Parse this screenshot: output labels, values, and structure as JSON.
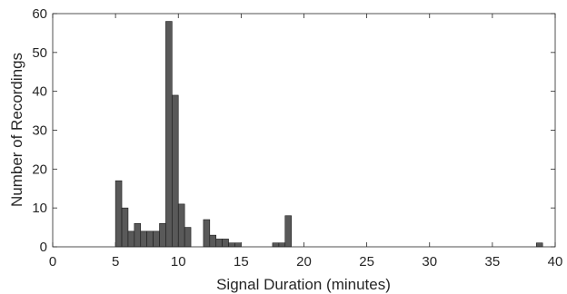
{
  "chart_data": {
    "type": "bar",
    "title": "",
    "xlabel": "Signal Duration (minutes)",
    "ylabel": "Number of Recordings",
    "xlim": [
      0,
      40
    ],
    "ylim": [
      0,
      60
    ],
    "xticks": [
      "0",
      "5",
      "10",
      "15",
      "20",
      "25",
      "30",
      "35",
      "40"
    ],
    "yticks": [
      "0",
      "10",
      "20",
      "30",
      "40",
      "50",
      "60"
    ],
    "bin_width": 0.5,
    "bar_color": "#595959",
    "bar_edge_color": "#1a1a1a",
    "grid": false,
    "bins": [
      {
        "start": 5.0,
        "count": 17
      },
      {
        "start": 5.5,
        "count": 10
      },
      {
        "start": 6.0,
        "count": 4
      },
      {
        "start": 6.5,
        "count": 6
      },
      {
        "start": 7.0,
        "count": 4
      },
      {
        "start": 7.5,
        "count": 4
      },
      {
        "start": 8.0,
        "count": 4
      },
      {
        "start": 8.5,
        "count": 6
      },
      {
        "start": 9.0,
        "count": 58
      },
      {
        "start": 9.5,
        "count": 39
      },
      {
        "start": 10.0,
        "count": 11
      },
      {
        "start": 10.5,
        "count": 5
      },
      {
        "start": 12.0,
        "count": 7
      },
      {
        "start": 12.5,
        "count": 3
      },
      {
        "start": 13.0,
        "count": 2
      },
      {
        "start": 13.5,
        "count": 2
      },
      {
        "start": 14.0,
        "count": 1
      },
      {
        "start": 14.5,
        "count": 1
      },
      {
        "start": 17.5,
        "count": 1
      },
      {
        "start": 18.0,
        "count": 1
      },
      {
        "start": 18.5,
        "count": 8
      },
      {
        "start": 38.5,
        "count": 1
      }
    ]
  }
}
